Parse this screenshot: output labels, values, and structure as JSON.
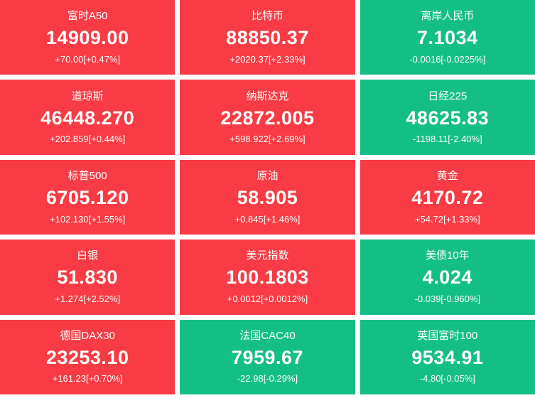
{
  "colors": {
    "up_background": "#f83b44",
    "down_background": "#14bf85",
    "text": "#ffffff",
    "page_background": "#ffffff"
  },
  "tiles": [
    {
      "name": "富时A50",
      "value": "14909.00",
      "change": "+70.00[+0.47%]",
      "direction": "up"
    },
    {
      "name": "比特币",
      "value": "88850.37",
      "change": "+2020.37[+2.33%]",
      "direction": "up"
    },
    {
      "name": "离岸人民币",
      "value": "7.1034",
      "change": "-0.0016[-0.0225%]",
      "direction": "down"
    },
    {
      "name": "道琼斯",
      "value": "46448.270",
      "change": "+202.859[+0.44%]",
      "direction": "up"
    },
    {
      "name": "纳斯达克",
      "value": "22872.005",
      "change": "+598.922[+2.69%]",
      "direction": "up"
    },
    {
      "name": "日经225",
      "value": "48625.83",
      "change": "-1198.11[-2.40%]",
      "direction": "down"
    },
    {
      "name": "标普500",
      "value": "6705.120",
      "change": "+102.130[+1.55%]",
      "direction": "up"
    },
    {
      "name": "原油",
      "value": "58.905",
      "change": "+0.845[+1.46%]",
      "direction": "up"
    },
    {
      "name": "黄金",
      "value": "4170.72",
      "change": "+54.72[+1.33%]",
      "direction": "up"
    },
    {
      "name": "白银",
      "value": "51.830",
      "change": "+1.274[+2.52%]",
      "direction": "up"
    },
    {
      "name": "美元指数",
      "value": "100.1803",
      "change": "+0.0012[+0.0012%]",
      "direction": "up"
    },
    {
      "name": "美债10年",
      "value": "4.024",
      "change": "-0.039[-0.960%]",
      "direction": "down"
    },
    {
      "name": "德国DAX30",
      "value": "23253.10",
      "change": "+161.23[+0.70%]",
      "direction": "up"
    },
    {
      "name": "法国CAC40",
      "value": "7959.67",
      "change": "-22.98[-0.29%]",
      "direction": "down"
    },
    {
      "name": "英国富时100",
      "value": "9534.91",
      "change": "-4.80[-0.05%]",
      "direction": "down"
    }
  ]
}
